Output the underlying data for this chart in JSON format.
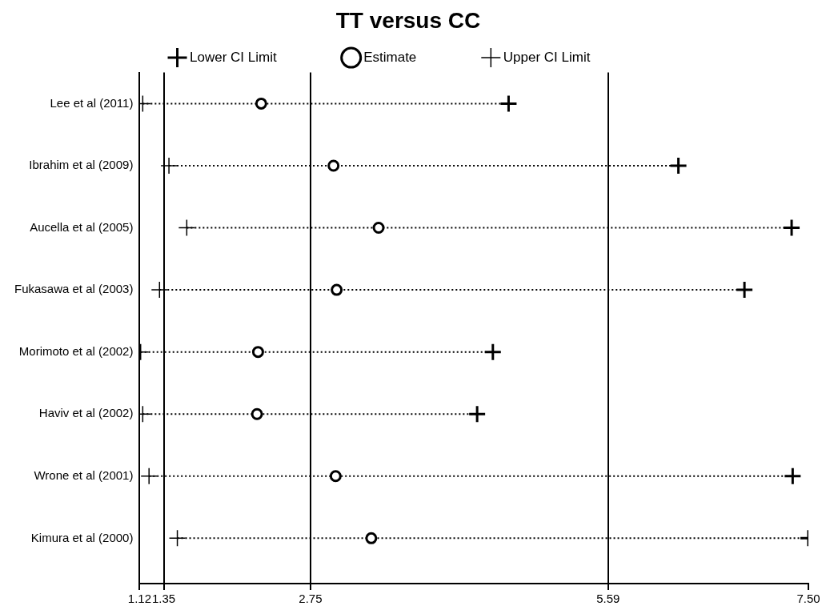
{
  "chart_data": {
    "type": "scatter",
    "title": "TT versus CC",
    "orientation": "horizontal",
    "categories": [
      "Lee et al (2011)",
      "Ibrahim et al (2009)",
      "Aucella et al (2005)",
      "Fukasawa et al (2003)",
      "Morimoto et al (2002)",
      "Haviv et al (2002)",
      "Wrone et al (2001)",
      "Kimura et al (2000)"
    ],
    "series": [
      {
        "name": "Lower CI Limit",
        "color": "#000000",
        "marker": "cross",
        "values": [
          1.15,
          1.4,
          1.57,
          1.31,
          1.13,
          1.15,
          1.21,
          1.48
        ]
      },
      {
        "name": "Estimate",
        "color": "#000000",
        "marker": "circle",
        "values": [
          2.28,
          2.97,
          3.4,
          3.0,
          2.25,
          2.24,
          2.99,
          3.33
        ]
      },
      {
        "name": "Upper CI Limit",
        "color": "#000000",
        "marker": "cross",
        "values": [
          4.64,
          6.26,
          7.34,
          6.89,
          4.49,
          4.34,
          7.35,
          7.5
        ]
      }
    ],
    "xlim": [
      1.12,
      7.5
    ],
    "xticks": [
      1.12,
      1.35,
      2.75,
      5.59,
      {
        "value": 7.5,
        "label": "7.50"
      }
    ],
    "legend": "top",
    "grid": "x",
    "line_style": "dotted"
  }
}
